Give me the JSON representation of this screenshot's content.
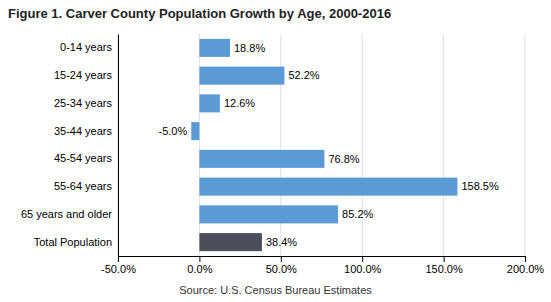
{
  "chart_data": {
    "type": "bar",
    "orientation": "horizontal",
    "title": "Figure 1. Carver County Population Growth by Age, 2000-2016",
    "categories": [
      "0-14 years",
      "15-24 years",
      "25-34 years",
      "35-44 years",
      "45-54 years",
      "55-64 years",
      "65 years and older",
      "Total Population"
    ],
    "values": [
      18.8,
      52.2,
      12.6,
      -5.0,
      76.8,
      158.5,
      85.2,
      38.4
    ],
    "value_labels": [
      "18.8%",
      "52.2%",
      "12.6%",
      "-5.0%",
      "76.8%",
      "158.5%",
      "85.2%",
      "38.4%"
    ],
    "colors": [
      "#5b9bd5",
      "#5b9bd5",
      "#5b9bd5",
      "#5b9bd5",
      "#5b9bd5",
      "#5b9bd5",
      "#5b9bd5",
      "#4a4f5a"
    ],
    "xlim": [
      -50,
      200
    ],
    "xticks": [
      {
        "value": -50,
        "label": "-50.0%"
      },
      {
        "value": 0,
        "label": "0.0%"
      },
      {
        "value": 50,
        "label": "50.0%"
      },
      {
        "value": 100,
        "label": "100.0%"
      },
      {
        "value": 150,
        "label": "150.0%"
      },
      {
        "value": 200,
        "label": "200.0%"
      }
    ],
    "grid": true,
    "data_labels": true,
    "annotations": [
      "Source: U.S. Census Bureau Estimates"
    ]
  }
}
